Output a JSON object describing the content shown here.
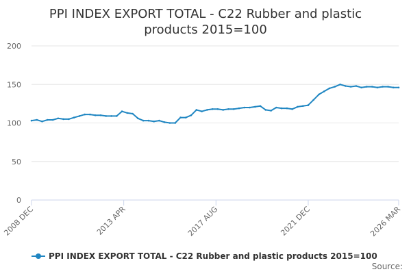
{
  "chart_data": {
    "type": "line",
    "title": "PPI INDEX EXPORT TOTAL - C22 Rubber and plastic products 2015=100",
    "title_lines": [
      "PPI INDEX EXPORT TOTAL - C22 Rubber and plastic",
      "products 2015=100"
    ],
    "xlabel": "",
    "ylabel": "",
    "x_start": "2008 DEC",
    "x_end": "2026 MAR",
    "x_tick_labels": [
      "2008 DEC",
      "2013 APR",
      "2017 AUG",
      "2021 DEC",
      "2026 MAR"
    ],
    "y_ticks": [
      0,
      50,
      100,
      150,
      200
    ],
    "ylim": [
      0,
      200
    ],
    "grid": true,
    "legend_position": "bottom",
    "line_color": "#1f86c2",
    "series": [
      {
        "name": "PPI INDEX EXPORT TOTAL - C22 Rubber and plastic products 2015=100",
        "x": [
          "2008 DEC",
          "2009 MAR",
          "2009 JUN",
          "2009 SEP",
          "2009 DEC",
          "2010 MAR",
          "2010 JUN",
          "2010 SEP",
          "2010 DEC",
          "2011 MAR",
          "2011 JUN",
          "2011 SEP",
          "2011 DEC",
          "2012 MAR",
          "2012 JUN",
          "2012 SEP",
          "2012 DEC",
          "2013 MAR",
          "2013 JUN",
          "2013 SEP",
          "2013 DEC",
          "2014 MAR",
          "2014 JUN",
          "2014 SEP",
          "2014 DEC",
          "2015 MAR",
          "2015 JUN",
          "2015 SEP",
          "2015 DEC",
          "2016 MAR",
          "2016 JUN",
          "2016 SEP",
          "2016 DEC",
          "2017 MAR",
          "2017 JUN",
          "2017 SEP",
          "2017 DEC",
          "2018 MAR",
          "2018 JUN",
          "2018 SEP",
          "2018 DEC",
          "2019 MAR",
          "2019 JUN",
          "2019 SEP",
          "2019 DEC",
          "2020 MAR",
          "2020 JUN",
          "2020 SEP",
          "2020 DEC",
          "2021 MAR",
          "2021 JUN",
          "2021 SEP",
          "2021 DEC",
          "2022 MAR",
          "2022 JUN",
          "2022 SEP",
          "2022 DEC",
          "2023 MAR",
          "2023 JUN",
          "2023 SEP",
          "2023 DEC",
          "2024 MAR",
          "2024 JUN",
          "2024 SEP",
          "2024 DEC",
          "2025 MAR",
          "2025 JUN",
          "2025 SEP",
          "2025 DEC",
          "2026 MAR"
        ],
        "values": [
          103,
          104,
          102,
          104,
          104,
          106,
          105,
          105,
          107,
          109,
          111,
          111,
          110,
          110,
          109,
          109,
          109,
          115,
          113,
          112,
          106,
          103,
          103,
          102,
          103,
          101,
          100,
          100,
          107,
          107,
          110,
          117,
          115,
          117,
          118,
          118,
          117,
          118,
          118,
          119,
          120,
          120,
          121,
          122,
          117,
          116,
          120,
          119,
          119,
          118,
          121,
          122,
          123,
          130,
          137,
          141,
          145,
          147,
          150,
          148,
          147,
          148,
          146,
          147,
          147,
          146,
          147,
          147,
          146,
          146
        ]
      }
    ]
  },
  "legend": {
    "label": "PPI INDEX EXPORT TOTAL - C22 Rubber and plastic products 2015=100"
  },
  "source": {
    "label": "Source:"
  }
}
